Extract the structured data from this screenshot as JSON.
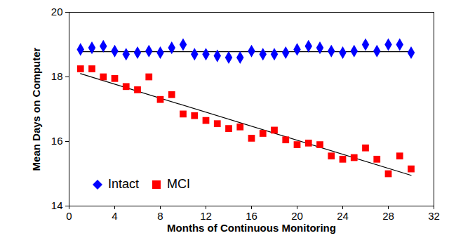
{
  "chart_data": {
    "type": "scatter",
    "x_label": "Months of Continuous Monitoring",
    "y_label": "Mean Days on Computer",
    "x": [
      1,
      2,
      3,
      4,
      5,
      6,
      7,
      8,
      9,
      10,
      11,
      12,
      13,
      14,
      15,
      16,
      17,
      18,
      19,
      20,
      21,
      22,
      23,
      24,
      25,
      26,
      27,
      28,
      29,
      30
    ],
    "series": [
      {
        "name": "Intact",
        "color": "#0000ff",
        "marker": "diamond",
        "values": [
          18.85,
          18.9,
          18.95,
          18.8,
          18.7,
          18.75,
          18.8,
          18.75,
          18.9,
          19.0,
          18.7,
          18.7,
          18.65,
          18.6,
          18.6,
          18.8,
          18.7,
          18.7,
          18.75,
          18.85,
          18.95,
          18.9,
          18.8,
          18.75,
          18.8,
          19.0,
          18.8,
          19.0,
          19.0,
          18.75
        ],
        "trend_x": [
          1,
          30
        ],
        "trend": [
          18.78,
          18.78
        ]
      },
      {
        "name": "MCI",
        "color": "#ff0000",
        "marker": "square",
        "values": [
          18.25,
          18.25,
          18.0,
          17.95,
          17.7,
          17.6,
          18.0,
          17.3,
          17.45,
          16.85,
          16.8,
          16.65,
          16.55,
          16.4,
          16.45,
          16.1,
          16.25,
          16.35,
          16.05,
          15.9,
          15.95,
          15.9,
          15.55,
          15.45,
          15.5,
          15.8,
          15.45,
          15.0,
          15.55,
          15.15
        ],
        "trend_x": [
          1,
          30
        ],
        "trend": [
          18.1,
          14.95
        ]
      }
    ],
    "xlim": [
      0,
      32
    ],
    "xticks": [
      0,
      4,
      8,
      12,
      16,
      20,
      24,
      28,
      32
    ],
    "ylim": [
      14,
      20
    ],
    "yticks": [
      14,
      16,
      18,
      20
    ],
    "grid": false,
    "legend": "lower left"
  }
}
